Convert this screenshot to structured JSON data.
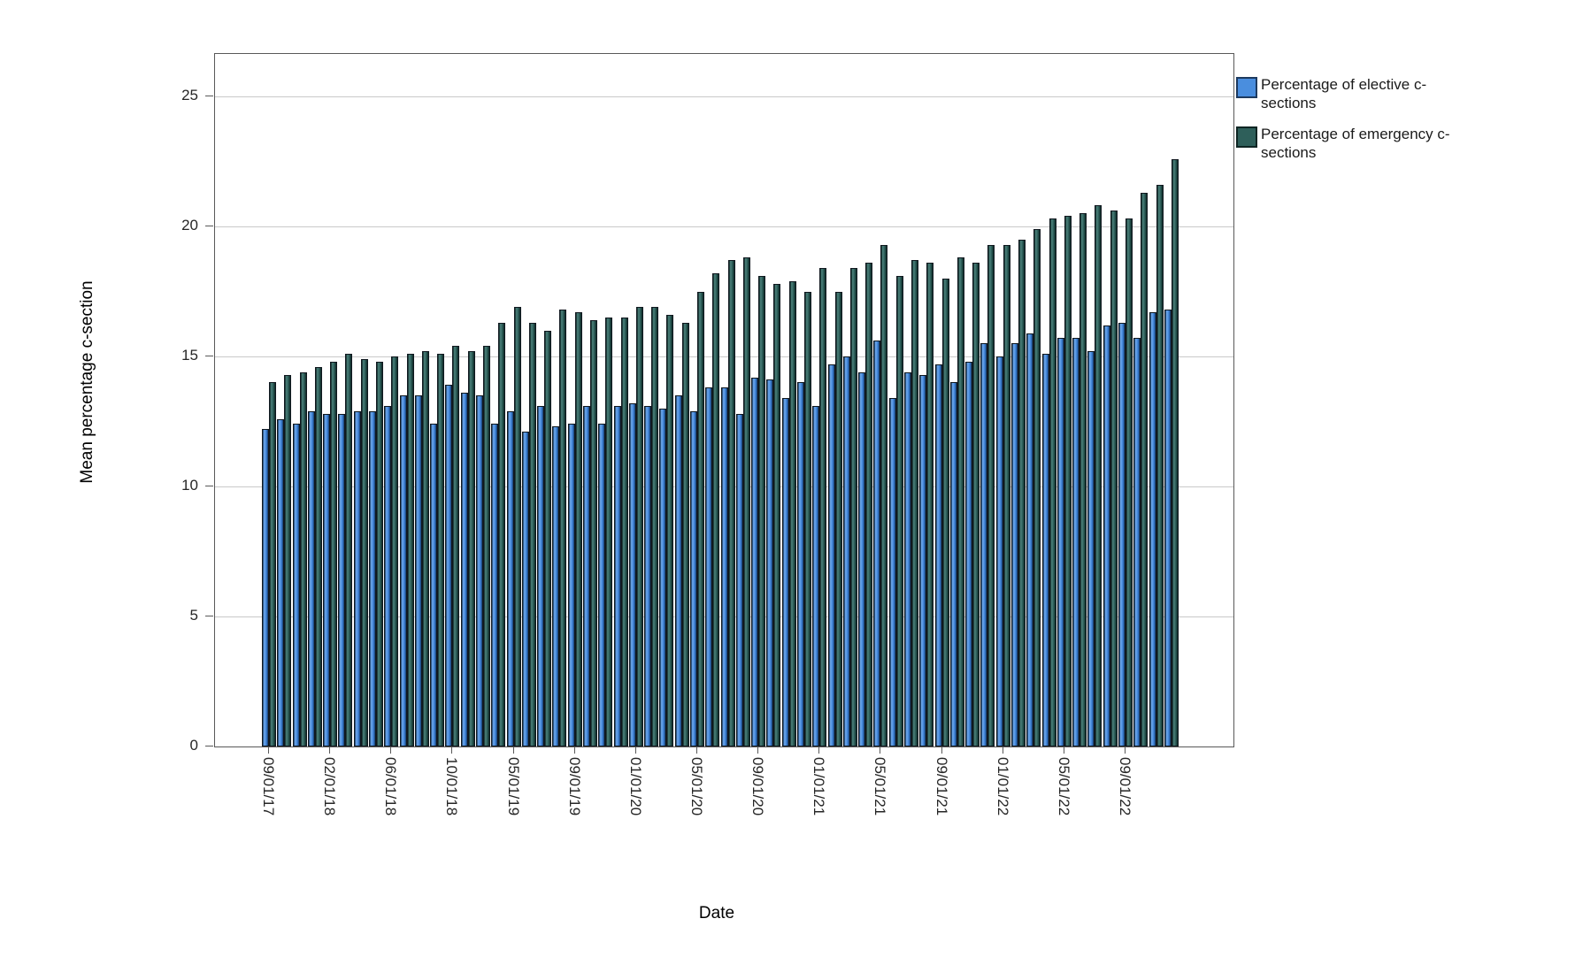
{
  "chart_data": {
    "type": "bar",
    "title": "",
    "xlabel": "Date",
    "ylabel": "Mean percentage c-section",
    "ylim": [
      0,
      26.6
    ],
    "yticks": [
      0,
      5,
      10,
      15,
      20,
      25
    ],
    "grid": "horizontal gridlines at ticks 5-25",
    "legend_position": "top-right outside plot",
    "x_tick_labels": [
      "09/01/17",
      "02/01/18",
      "06/01/18",
      "10/01/18",
      "05/01/19",
      "09/01/19",
      "01/01/20",
      "05/01/20",
      "09/01/20",
      "01/01/21",
      "05/01/21",
      "09/01/21",
      "01/01/22",
      "05/01/22",
      "09/01/22"
    ],
    "x_tick_every_n_pairs": 4,
    "n_pairs": 60,
    "series": [
      {
        "name": "Percentage of elective c-sections",
        "color": "#4a8ede",
        "values": [
          12.2,
          12.6,
          12.4,
          12.9,
          12.8,
          12.8,
          12.9,
          12.9,
          13.1,
          13.5,
          13.5,
          12.4,
          13.9,
          13.6,
          13.5,
          12.4,
          12.9,
          12.1,
          13.1,
          12.3,
          12.4,
          13.1,
          12.4,
          13.1,
          13.2,
          13.1,
          13.0,
          13.5,
          12.9,
          13.8,
          13.8,
          12.8,
          14.2,
          14.1,
          13.4,
          14.0,
          13.1,
          14.7,
          15.0,
          14.4,
          15.6,
          13.4,
          14.4,
          14.3,
          14.7,
          14.0,
          14.8,
          15.5,
          15.0,
          15.5,
          15.9,
          15.1,
          15.7,
          15.7,
          15.2,
          16.2,
          16.3,
          15.7,
          16.7,
          16.8
        ]
      },
      {
        "name": "Percentage of emergency c-sections",
        "color": "#2e5f5a",
        "values": [
          14.0,
          14.3,
          14.4,
          14.6,
          14.8,
          15.1,
          14.9,
          14.8,
          15.0,
          15.1,
          15.2,
          15.1,
          15.4,
          15.2,
          15.4,
          16.3,
          16.9,
          16.3,
          16.0,
          16.8,
          16.7,
          16.4,
          16.5,
          16.5,
          16.9,
          16.9,
          16.6,
          16.3,
          17.5,
          18.2,
          18.7,
          18.8,
          18.1,
          17.8,
          17.9,
          17.5,
          18.4,
          17.5,
          18.4,
          18.6,
          19.3,
          18.1,
          18.7,
          18.6,
          18.0,
          18.8,
          18.6,
          19.3,
          19.3,
          19.5,
          19.9,
          20.3,
          20.4,
          20.5,
          20.8,
          20.6,
          20.3,
          21.3,
          21.6,
          22.6
        ]
      }
    ]
  },
  "axes": {
    "y_title": "Mean percentage c-section",
    "x_title": "Date"
  },
  "legend": {
    "items": [
      {
        "label": "Percentage of elective c-sections",
        "color": "#4a8ede",
        "border": "#1d3a5f"
      },
      {
        "label": "Percentage of emergency c-sections",
        "color": "#2e5f5a",
        "border": "#0e2523"
      }
    ]
  }
}
